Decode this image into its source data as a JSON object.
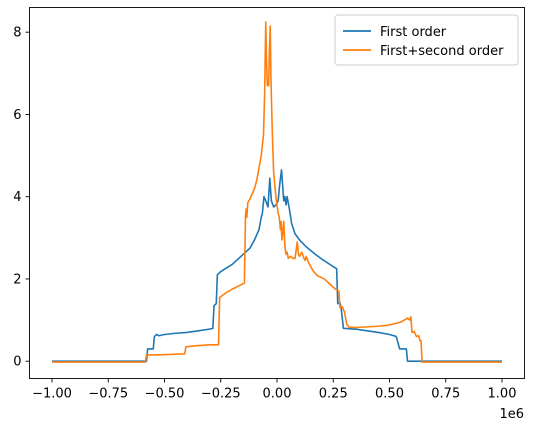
{
  "chart_data": {
    "type": "line",
    "title": "",
    "xlabel": "",
    "ylabel": "",
    "x_offset_label": "1e6",
    "xlim": [
      -1.1,
      1.1
    ],
    "ylim": [
      -0.42,
      8.6
    ],
    "xticks": [
      -1.0,
      -0.75,
      -0.5,
      -0.25,
      0.0,
      0.25,
      0.5,
      0.75,
      1.0
    ],
    "xtick_labels": [
      "−1.00",
      "−0.75",
      "−0.50",
      "−0.25",
      "0.00",
      "0.25",
      "0.50",
      "0.75",
      "1.00"
    ],
    "yticks": [
      0,
      2,
      4,
      6,
      8
    ],
    "ytick_labels": [
      "0",
      "2",
      "4",
      "6",
      "8"
    ],
    "grid": false,
    "legend_position": "top-right",
    "series": [
      {
        "name": "First order",
        "color": "#1f77b4",
        "points": [
          [
            -1.0,
            0.0
          ],
          [
            -0.58,
            0.0
          ],
          [
            -0.575,
            0.3
          ],
          [
            -0.55,
            0.3
          ],
          [
            -0.545,
            0.6
          ],
          [
            -0.535,
            0.65
          ],
          [
            -0.525,
            0.62
          ],
          [
            -0.5,
            0.65
          ],
          [
            -0.45,
            0.68
          ],
          [
            -0.4,
            0.7
          ],
          [
            -0.35,
            0.74
          ],
          [
            -0.3,
            0.78
          ],
          [
            -0.285,
            0.8
          ],
          [
            -0.28,
            1.35
          ],
          [
            -0.27,
            1.4
          ],
          [
            -0.265,
            2.1
          ],
          [
            -0.25,
            2.18
          ],
          [
            -0.2,
            2.35
          ],
          [
            -0.15,
            2.6
          ],
          [
            -0.12,
            2.75
          ],
          [
            -0.1,
            2.95
          ],
          [
            -0.08,
            3.2
          ],
          [
            -0.07,
            3.5
          ],
          [
            -0.065,
            3.6
          ],
          [
            -0.058,
            4.0
          ],
          [
            -0.05,
            3.9
          ],
          [
            -0.04,
            3.75
          ],
          [
            -0.032,
            4.45
          ],
          [
            -0.025,
            3.9
          ],
          [
            -0.015,
            3.75
          ],
          [
            -0.005,
            3.8
          ],
          [
            0.005,
            3.9
          ],
          [
            0.012,
            4.3
          ],
          [
            0.02,
            4.65
          ],
          [
            0.03,
            3.9
          ],
          [
            0.035,
            4.0
          ],
          [
            0.04,
            3.8
          ],
          [
            0.045,
            4.0
          ],
          [
            0.055,
            3.7
          ],
          [
            0.065,
            3.35
          ],
          [
            0.08,
            3.1
          ],
          [
            0.1,
            2.95
          ],
          [
            0.13,
            2.78
          ],
          [
            0.17,
            2.6
          ],
          [
            0.2,
            2.48
          ],
          [
            0.25,
            2.3
          ],
          [
            0.265,
            2.25
          ],
          [
            0.27,
            1.4
          ],
          [
            0.28,
            1.42
          ],
          [
            0.285,
            1.3
          ],
          [
            0.295,
            0.8
          ],
          [
            0.35,
            0.78
          ],
          [
            0.4,
            0.74
          ],
          [
            0.45,
            0.7
          ],
          [
            0.5,
            0.65
          ],
          [
            0.52,
            0.62
          ],
          [
            0.53,
            0.6
          ],
          [
            0.545,
            0.3
          ],
          [
            0.575,
            0.3
          ],
          [
            0.58,
            0.0
          ],
          [
            1.0,
            0.0
          ]
        ]
      },
      {
        "name": "First+second order",
        "color": "#ff7f0e",
        "points": [
          [
            -1.0,
            -0.02
          ],
          [
            -0.585,
            -0.02
          ],
          [
            -0.58,
            0.15
          ],
          [
            -0.5,
            0.16
          ],
          [
            -0.45,
            0.17
          ],
          [
            -0.41,
            0.18
          ],
          [
            -0.405,
            0.35
          ],
          [
            -0.35,
            0.38
          ],
          [
            -0.3,
            0.4
          ],
          [
            -0.26,
            0.4
          ],
          [
            -0.255,
            1.55
          ],
          [
            -0.23,
            1.65
          ],
          [
            -0.2,
            1.75
          ],
          [
            -0.17,
            1.83
          ],
          [
            -0.145,
            1.9
          ],
          [
            -0.14,
            3.55
          ],
          [
            -0.137,
            3.7
          ],
          [
            -0.134,
            3.5
          ],
          [
            -0.13,
            3.85
          ],
          [
            -0.12,
            3.95
          ],
          [
            -0.1,
            4.2
          ],
          [
            -0.09,
            4.4
          ],
          [
            -0.08,
            4.7
          ],
          [
            -0.07,
            5.0
          ],
          [
            -0.06,
            5.5
          ],
          [
            -0.055,
            6.5
          ],
          [
            -0.05,
            8.25
          ],
          [
            -0.046,
            7.2
          ],
          [
            -0.043,
            6.7
          ],
          [
            -0.04,
            6.75
          ],
          [
            -0.037,
            6.7
          ],
          [
            -0.034,
            7.5
          ],
          [
            -0.03,
            8.15
          ],
          [
            -0.027,
            6.9
          ],
          [
            -0.023,
            6.0
          ],
          [
            -0.02,
            5.4
          ],
          [
            -0.015,
            4.6
          ],
          [
            -0.01,
            4.3
          ],
          [
            -0.005,
            4.0
          ],
          [
            0.0,
            3.8
          ],
          [
            0.005,
            3.6
          ],
          [
            0.01,
            3.5
          ],
          [
            0.015,
            3.2
          ],
          [
            0.018,
            3.4
          ],
          [
            0.022,
            2.95
          ],
          [
            0.025,
            3.1
          ],
          [
            0.03,
            3.4
          ],
          [
            0.035,
            2.8
          ],
          [
            0.04,
            2.6
          ],
          [
            0.045,
            2.65
          ],
          [
            0.05,
            2.5
          ],
          [
            0.06,
            2.55
          ],
          [
            0.07,
            2.5
          ],
          [
            0.08,
            2.5
          ],
          [
            0.085,
            2.7
          ],
          [
            0.09,
            2.9
          ],
          [
            0.095,
            2.6
          ],
          [
            0.1,
            2.55
          ],
          [
            0.11,
            2.65
          ],
          [
            0.12,
            2.5
          ],
          [
            0.125,
            2.45
          ],
          [
            0.13,
            2.55
          ],
          [
            0.14,
            2.4
          ],
          [
            0.16,
            2.2
          ],
          [
            0.18,
            2.08
          ],
          [
            0.21,
            2.0
          ],
          [
            0.24,
            1.85
          ],
          [
            0.26,
            1.75
          ],
          [
            0.275,
            1.7
          ],
          [
            0.28,
            1.3
          ],
          [
            0.29,
            1.32
          ],
          [
            0.3,
            1.2
          ],
          [
            0.31,
            0.9
          ],
          [
            0.32,
            0.83
          ],
          [
            0.35,
            0.82
          ],
          [
            0.45,
            0.85
          ],
          [
            0.5,
            0.88
          ],
          [
            0.55,
            0.95
          ],
          [
            0.58,
            1.05
          ],
          [
            0.59,
            1.0
          ],
          [
            0.595,
            1.08
          ],
          [
            0.6,
            0.7
          ],
          [
            0.61,
            0.72
          ],
          [
            0.62,
            0.6
          ],
          [
            0.63,
            0.62
          ],
          [
            0.635,
            0.5
          ],
          [
            0.64,
            0.5
          ],
          [
            0.645,
            -0.02
          ],
          [
            1.0,
            -0.02
          ]
        ]
      }
    ]
  }
}
